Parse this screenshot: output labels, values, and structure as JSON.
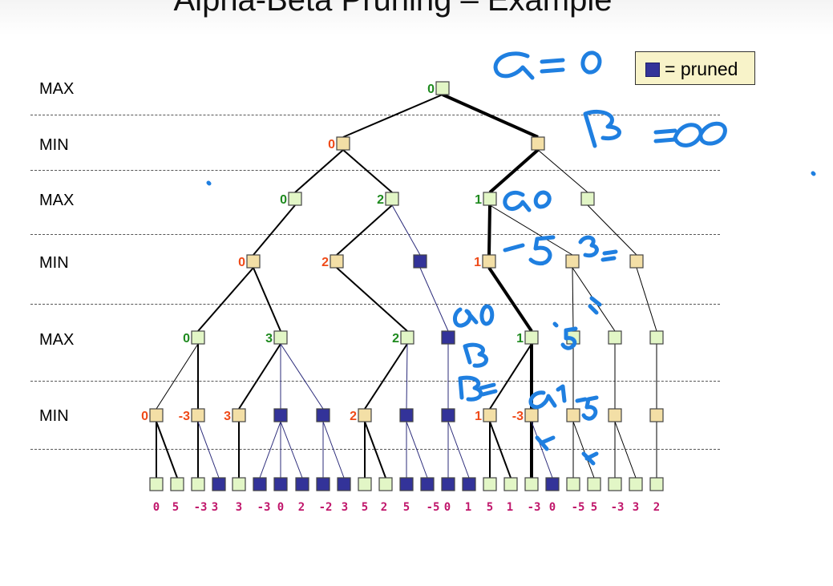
{
  "title": "Alpha-Beta Pruning – Example",
  "levels": [
    "MAX",
    "MIN",
    "MAX",
    "MIN",
    "MAX",
    "MIN"
  ],
  "legend": {
    "label": "= pruned",
    "swatch_color": "#333399"
  },
  "colors": {
    "max_fill": "#e2f6c6",
    "min_fill": "#f3dfa6",
    "pruned_fill": "#333399",
    "max_value": "#1e8a1e",
    "min_value": "#ef4a18",
    "leaf_value": "#c0166b",
    "annotation_ink": "#1f7fe0"
  },
  "tree": {
    "root_value": "0",
    "level1_values": [
      "0",
      ""
    ],
    "level2_values": [
      "0",
      "2",
      "1",
      ""
    ],
    "level3_values": [
      "0",
      "2",
      "",
      "1",
      "",
      ""
    ],
    "level4_values": [
      "0",
      "3",
      "2",
      "",
      "1",
      "",
      "",
      ""
    ],
    "level5_values": [
      "0",
      "-3",
      "3",
      "",
      "",
      "2",
      "",
      "",
      "1",
      "-3",
      "",
      "",
      ""
    ],
    "leaf_values": [
      "0",
      "5",
      "-3",
      "3",
      "3",
      "-3",
      "0",
      "2",
      "-2",
      "3",
      "5",
      "2",
      "5",
      "-5",
      "0",
      "1",
      "5",
      "1",
      "-3",
      "0",
      "-5",
      "5",
      "-3",
      "3",
      "2"
    ]
  },
  "annotations": [
    "α = 0",
    "β = ∞",
    "α 0",
    "-5",
    "β =",
    "α 0",
    "β",
    "β =",
    "α 1",
    "-5"
  ]
}
